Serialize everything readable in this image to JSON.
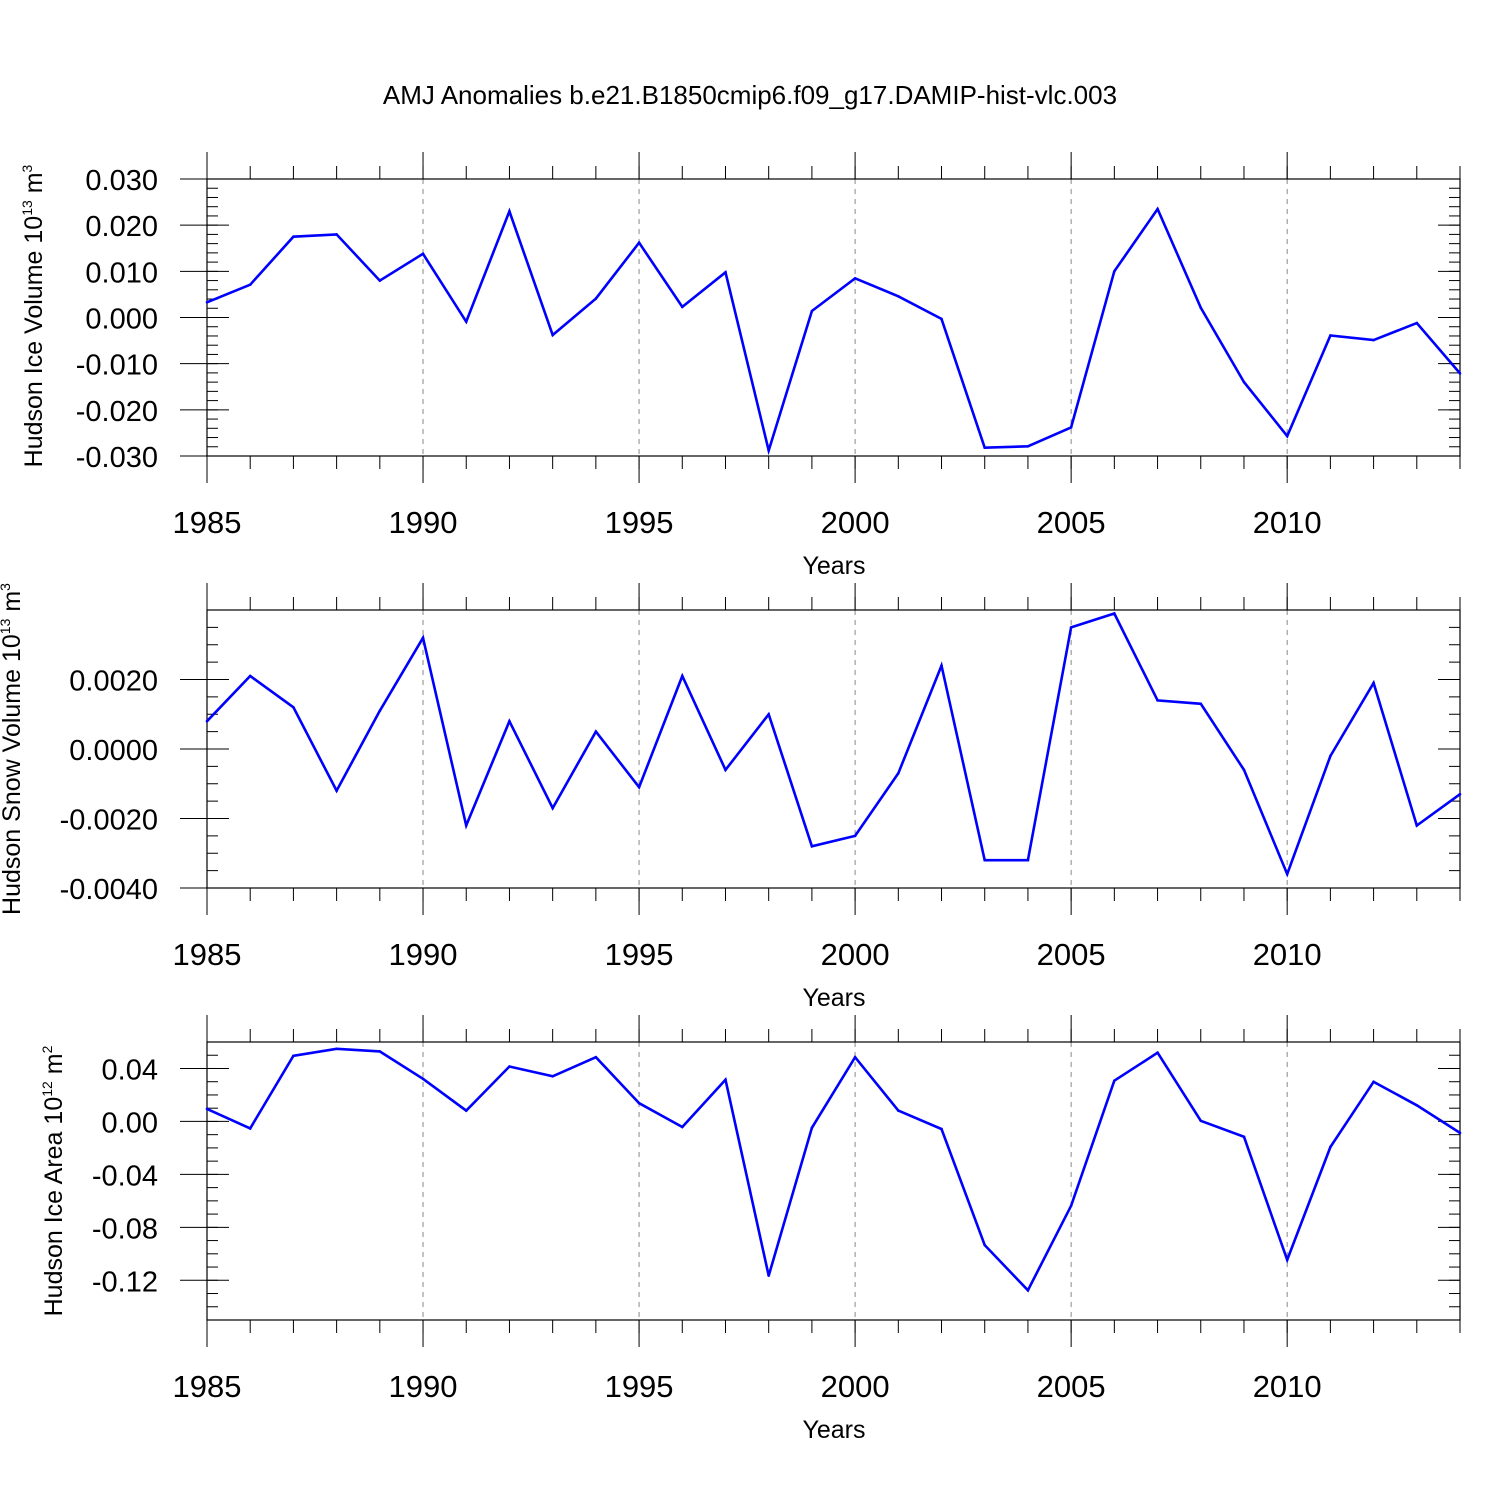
{
  "title": "AMJ Anomalies b.e21.B1850cmip6.f09_g17.DAMIP-hist-vlc.003",
  "chart_data": [
    {
      "type": "line",
      "ylabel": "Hudson Ice Volume 10",
      "ylabel_exp": "13",
      "ylabel_unit": " m",
      "ylabel_unit_exp": "3",
      "xlabel": "Years",
      "xlim": [
        1985,
        2014
      ],
      "ylim": [
        -0.03,
        0.03
      ],
      "xticks": [
        "1985",
        "1990",
        "1995",
        "2000",
        "2005",
        "2010"
      ],
      "yticks": [
        {
          "v": 0.03,
          "label": "0.030"
        },
        {
          "v": 0.02,
          "label": "0.020"
        },
        {
          "v": 0.01,
          "label": "0.010"
        },
        {
          "v": 0.0,
          "label": "0.000"
        },
        {
          "v": -0.01,
          "label": "-0.010"
        },
        {
          "v": -0.02,
          "label": "-0.020"
        },
        {
          "v": -0.03,
          "label": "-0.030"
        }
      ],
      "minor_step": 0.002,
      "grid": "dashed vertical at major x ticks",
      "color": "#0000ff",
      "x": [
        1985,
        1986,
        1987,
        1988,
        1989,
        1990,
        1991,
        1992,
        1993,
        1994,
        1995,
        1996,
        1997,
        1998,
        1999,
        2000,
        2001,
        2002,
        2003,
        2004,
        2005,
        2006,
        2007,
        2008,
        2009,
        2010,
        2011,
        2012,
        2013,
        2014
      ],
      "values": [
        0.0033,
        0.0071,
        0.0175,
        0.018,
        0.008,
        0.0138,
        -0.0009,
        0.023,
        -0.0038,
        0.0041,
        0.0162,
        0.0023,
        0.0098,
        -0.0288,
        0.0014,
        0.0085,
        0.0046,
        -0.0003,
        -0.0282,
        -0.0279,
        -0.0238,
        0.01,
        0.0235,
        0.0021,
        -0.014,
        -0.0257,
        -0.0039,
        -0.0049,
        -0.0012,
        -0.0121
      ]
    },
    {
      "type": "line",
      "ylabel": "Hudson Snow Volume 10",
      "ylabel_exp": "13",
      "ylabel_unit": " m",
      "ylabel_unit_exp": "3",
      "xlabel": "Years",
      "xlim": [
        1985,
        2014
      ],
      "ylim": [
        -0.004,
        0.004
      ],
      "xticks": [
        "1985",
        "1990",
        "1995",
        "2000",
        "2005",
        "2010"
      ],
      "yticks": [
        {
          "v": 0.002,
          "label": "0.0020"
        },
        {
          "v": 0.0,
          "label": "0.0000"
        },
        {
          "v": -0.002,
          "label": "-0.0020"
        },
        {
          "v": -0.004,
          "label": "-0.0040"
        }
      ],
      "minor_step": 0.0005,
      "grid": "dashed vertical at major x ticks",
      "color": "#0000ff",
      "x": [
        1985,
        1986,
        1987,
        1988,
        1989,
        1990,
        1991,
        1992,
        1993,
        1994,
        1995,
        1996,
        1997,
        1998,
        1999,
        2000,
        2001,
        2002,
        2003,
        2004,
        2005,
        2006,
        2007,
        2008,
        2009,
        2010,
        2011,
        2012,
        2013,
        2014
      ],
      "values": [
        0.0008,
        0.0021,
        0.0012,
        -0.0012,
        0.0011,
        0.0032,
        -0.0022,
        0.0008,
        -0.0017,
        0.0005,
        -0.0011,
        0.0021,
        -0.0006,
        0.001,
        -0.0028,
        -0.0025,
        -0.0007,
        0.0024,
        -0.0032,
        -0.0032,
        0.0035,
        0.0039,
        0.0014,
        0.0013,
        -0.0006,
        -0.0036,
        -0.0002,
        0.0019,
        -0.0022,
        -0.0013
      ]
    },
    {
      "type": "line",
      "ylabel": "Hudson Ice Area 10",
      "ylabel_exp": "12",
      "ylabel_unit": " m",
      "ylabel_unit_exp": "2",
      "xlabel": "Years",
      "xlim": [
        1985,
        2014
      ],
      "ylim": [
        -0.15,
        0.06
      ],
      "xticks": [
        "1985",
        "1990",
        "1995",
        "2000",
        "2005",
        "2010"
      ],
      "yticks": [
        {
          "v": 0.04,
          "label": "0.04"
        },
        {
          "v": 0.0,
          "label": "0.00"
        },
        {
          "v": -0.04,
          "label": "-0.04"
        },
        {
          "v": -0.08,
          "label": "-0.08"
        },
        {
          "v": -0.12,
          "label": "-0.12"
        }
      ],
      "minor_step": 0.01,
      "grid": "dashed vertical at major x ticks",
      "color": "#0000ff",
      "x": [
        1985,
        1986,
        1987,
        1988,
        1989,
        1990,
        1991,
        1992,
        1993,
        1994,
        1995,
        1996,
        1997,
        1998,
        1999,
        2000,
        2001,
        2002,
        2003,
        2004,
        2005,
        2006,
        2007,
        2008,
        2009,
        2010,
        2011,
        2012,
        2013,
        2014
      ],
      "values": [
        0.0095,
        -0.0053,
        0.0496,
        0.0549,
        0.0529,
        0.0322,
        0.0082,
        0.0415,
        0.0341,
        0.0485,
        0.0138,
        -0.0042,
        0.0315,
        -0.1165,
        -0.0048,
        0.0485,
        0.0082,
        -0.0057,
        -0.0934,
        -0.1276,
        -0.0637,
        0.0308,
        0.0519,
        0.0005,
        -0.0116,
        -0.1046,
        -0.0193,
        0.0299,
        0.0122,
        -0.0087
      ]
    }
  ]
}
